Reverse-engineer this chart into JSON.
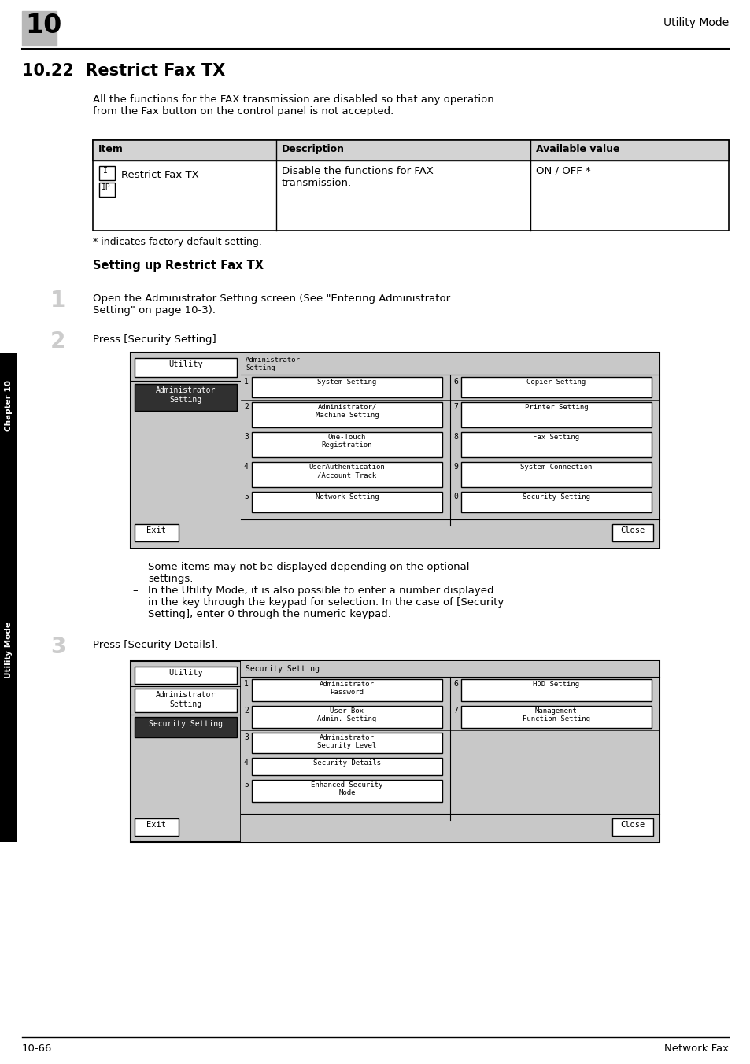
{
  "page_number": "10",
  "header_right": "Utility Mode",
  "section_title": "10.22  Restrict Fax TX",
  "intro_text": "All the functions for the FAX transmission are disabled so that any operation\nfrom the Fax button on the control panel is not accepted.",
  "table_headers": [
    "Item",
    "Description",
    "Available value"
  ],
  "table_row_item": "Restrict Fax TX",
  "table_row_desc": "Disable the functions for FAX\ntransmission.",
  "table_row_value": "ON / OFF *",
  "footnote": "* indicates factory default setting.",
  "subsection_title": "Setting up Restrict Fax TX",
  "step1_num": "1",
  "step1_text": "Open the Administrator Setting screen (See \"Entering Administrator\nSetting\" on page 10-3).",
  "step2_num": "2",
  "step2_text": "Press [Security Setting].",
  "step3_num": "3",
  "step3_text": "Press [Security Details].",
  "bullet1": "Some items may not be displayed depending on the optional\nsettings.",
  "bullet2": "In the Utility Mode, it is also possible to enter a number displayed\nin the key through the keypad for selection. In the case of [Security\nSetting], enter 0 through the numeric keypad.",
  "footer_left": "10-66",
  "footer_right": "Network Fax",
  "bg_color": "#ffffff"
}
